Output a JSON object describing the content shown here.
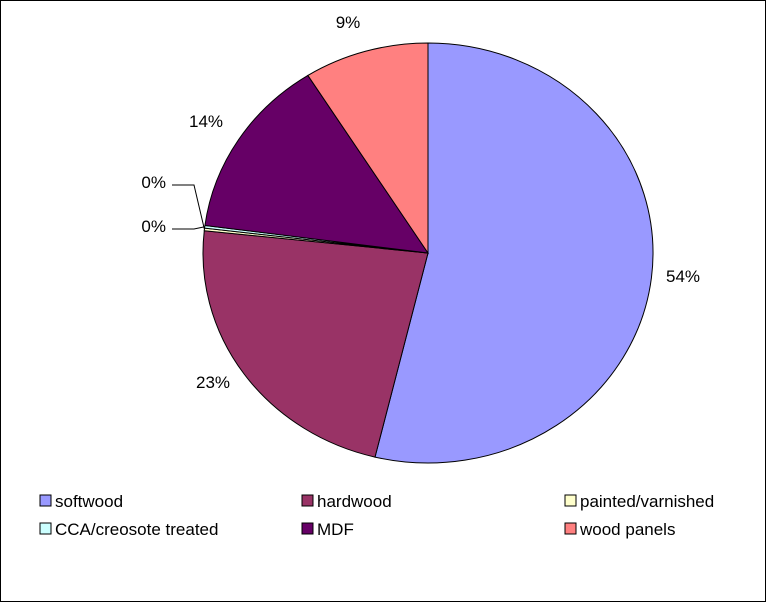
{
  "chart_data": {
    "type": "pie",
    "title": "",
    "categories": [
      "softwood",
      "hardwood",
      "painted/varnished",
      "CCA/creosote treated",
      "MDF",
      "wood panels"
    ],
    "values": [
      54,
      23,
      0.2,
      0.2,
      14,
      9
    ],
    "data_labels": [
      "54%",
      "23%",
      "0%",
      "0%",
      "14%",
      "9%"
    ],
    "colors": [
      "#9999FF",
      "#993366",
      "#FFFFCC",
      "#CCFFFF",
      "#660066",
      "#FF8080"
    ],
    "legend_position": "bottom"
  }
}
